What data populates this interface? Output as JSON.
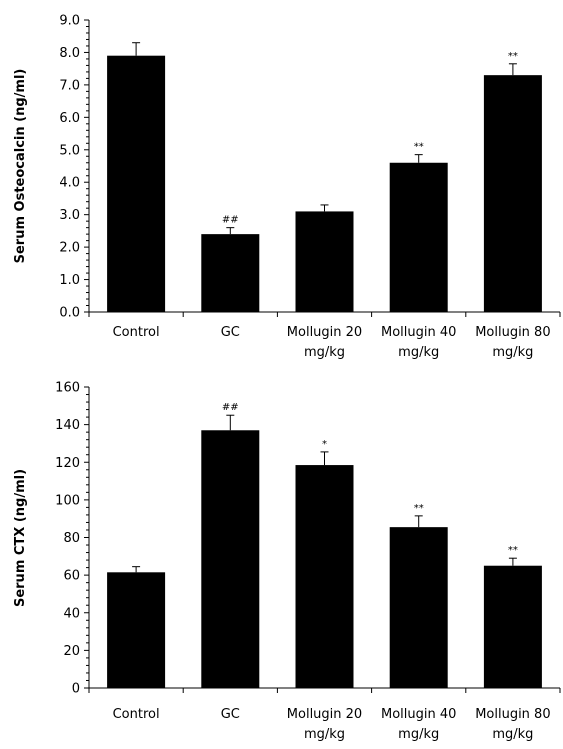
{
  "chart_data": [
    {
      "type": "bar",
      "categories": [
        [
          "Control"
        ],
        [
          "GC"
        ],
        [
          "Mollugin 20",
          "mg/kg"
        ],
        [
          "Mollugin 40",
          "mg/kg"
        ],
        [
          "Mollugin 80",
          "mg/kg"
        ]
      ],
      "values": [
        7.9,
        2.4,
        3.1,
        4.6,
        7.3
      ],
      "errors": [
        0.4,
        0.2,
        0.2,
        0.25,
        0.35
      ],
      "annotations": [
        "",
        "##",
        "",
        "**",
        "**"
      ],
      "ylabel": "Serum Osteocalcin (ng/ml)",
      "ylim": [
        0,
        9
      ],
      "yticks": [
        0,
        1,
        2,
        3,
        4,
        5,
        6,
        7,
        8,
        9
      ],
      "ytick_labels": [
        "0.0",
        "1.0",
        "2.0",
        "3.0",
        "4.0",
        "5.0",
        "6.0",
        "7.0",
        "8.0",
        "9.0"
      ],
      "minor_ticks_per_major": 5,
      "bar_color": "#000000",
      "grid": false
    },
    {
      "type": "bar",
      "categories": [
        [
          "Control"
        ],
        [
          "GC"
        ],
        [
          "Mollugin 20",
          "mg/kg"
        ],
        [
          "Mollugin 40",
          "mg/kg"
        ],
        [
          "Mollugin 80",
          "mg/kg"
        ]
      ],
      "values": [
        61.5,
        137,
        118.5,
        85.5,
        65
      ],
      "errors": [
        3,
        8,
        7,
        6,
        4
      ],
      "annotations": [
        "",
        "##",
        "*",
        "**",
        "**"
      ],
      "ylabel": "Serum CTX (ng/ml)",
      "ylim": [
        0,
        160
      ],
      "yticks": [
        0,
        20,
        40,
        60,
        80,
        100,
        120,
        140,
        160
      ],
      "ytick_labels": [
        "0",
        "20",
        "40",
        "60",
        "80",
        "100",
        "120",
        "140",
        "160"
      ],
      "minor_ticks_per_major": 5,
      "bar_color": "#000000",
      "grid": false
    }
  ]
}
